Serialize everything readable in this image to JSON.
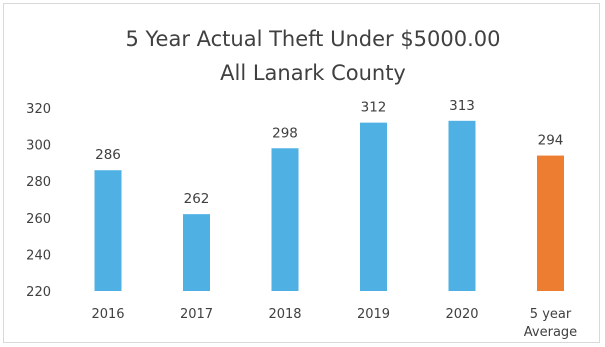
{
  "chart_data": {
    "type": "bar",
    "title": "5 Year Actual Theft Under $5000.00",
    "subtitle": "All Lanark County",
    "xlabel": "",
    "ylabel": "",
    "categories": [
      [
        "2016"
      ],
      [
        "2017"
      ],
      [
        "2018"
      ],
      [
        "2019"
      ],
      [
        "2020"
      ],
      [
        "5 year",
        "Average"
      ]
    ],
    "values": [
      286,
      262,
      298,
      312,
      313,
      294
    ],
    "bar_colors": [
      "#4fb1e3",
      "#4fb1e3",
      "#4fb1e3",
      "#4fb1e3",
      "#4fb1e3",
      "#ed7d31"
    ],
    "ylim": [
      220,
      320
    ],
    "yticks": [
      220,
      240,
      260,
      280,
      300,
      320
    ],
    "grid": false,
    "legend": "none"
  }
}
